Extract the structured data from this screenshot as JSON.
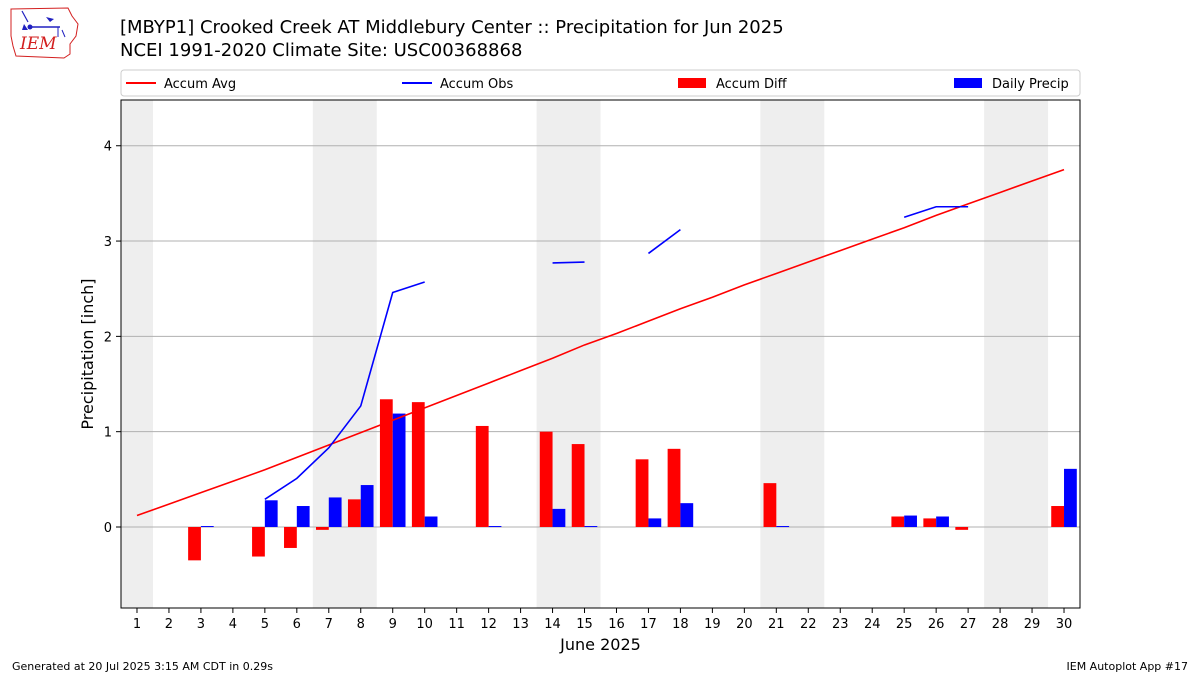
{
  "header": {
    "title_line1": "[MBYP1] Crooked Creek  AT Middlebury Center :: Precipitation for Jun 2025",
    "title_line2": "NCEI 1991-2020 Climate Site: USC00368868"
  },
  "logo": {
    "text": "IEM",
    "icon": "iowa-map-logo-icon"
  },
  "footer": {
    "left": "Generated at 20 Jul 2025 3:15 AM CDT in 0.29s",
    "right": "IEM Autoplot App #17"
  },
  "colors": {
    "accum_avg": "#ff0000",
    "accum_obs": "#0000ff",
    "accum_diff": "#ff0000",
    "daily_precip": "#0000ff",
    "weekend_shade": "#eeeeee",
    "grid": "#b0b0b0"
  },
  "chart_data": {
    "type": "bar",
    "xlabel": "June 2025",
    "ylabel": "Precipitation [inch]",
    "xlim": [
      0.5,
      30.5
    ],
    "ylim": [
      -0.85,
      4.48
    ],
    "yticks": [
      0,
      1,
      2,
      3,
      4
    ],
    "grid": "horizontal",
    "legend_position": "top",
    "legend": [
      {
        "label": "Accum Avg",
        "kind": "line",
        "color": "#ff0000"
      },
      {
        "label": "Accum Obs",
        "kind": "line",
        "color": "#0000ff"
      },
      {
        "label": "Accum Diff",
        "kind": "bar",
        "color": "#ff0000"
      },
      {
        "label": "Daily Precip",
        "kind": "bar",
        "color": "#0000ff"
      }
    ],
    "days": [
      1,
      2,
      3,
      4,
      5,
      6,
      7,
      8,
      9,
      10,
      11,
      12,
      13,
      14,
      15,
      16,
      17,
      18,
      19,
      20,
      21,
      22,
      23,
      24,
      25,
      26,
      27,
      28,
      29,
      30
    ],
    "weekend_shading": [
      [
        0.5,
        1.5
      ],
      [
        6.5,
        8.5
      ],
      [
        13.5,
        15.5
      ],
      [
        20.5,
        22.5
      ],
      [
        27.5,
        29.5
      ]
    ],
    "accum_avg": [
      0.12,
      0.24,
      0.36,
      0.48,
      0.6,
      0.73,
      0.86,
      0.99,
      1.12,
      1.25,
      1.38,
      1.51,
      1.64,
      1.77,
      1.91,
      2.03,
      2.16,
      2.29,
      2.41,
      2.54,
      2.66,
      2.78,
      2.9,
      3.02,
      3.14,
      3.27,
      3.39,
      3.51,
      3.63,
      3.75
    ],
    "accum_obs": [
      null,
      null,
      null,
      null,
      0.29,
      0.51,
      0.83,
      1.27,
      2.46,
      2.57,
      null,
      null,
      null,
      2.77,
      2.78,
      null,
      2.87,
      3.12,
      null,
      null,
      null,
      null,
      null,
      null,
      3.25,
      3.36,
      3.36,
      null,
      null,
      null
    ],
    "accum_diff": [
      null,
      null,
      -0.35,
      null,
      -0.31,
      -0.22,
      -0.03,
      0.29,
      1.34,
      1.31,
      null,
      1.06,
      null,
      1.0,
      0.87,
      null,
      0.71,
      0.82,
      null,
      null,
      0.46,
      null,
      null,
      null,
      0.11,
      0.09,
      -0.03,
      null,
      null,
      0.22
    ],
    "daily_precip": [
      null,
      null,
      0.01,
      null,
      0.28,
      0.22,
      0.31,
      0.44,
      1.19,
      0.11,
      null,
      0.01,
      null,
      0.19,
      0.01,
      null,
      0.09,
      0.25,
      null,
      null,
      0.01,
      null,
      null,
      null,
      0.12,
      0.11,
      null,
      null,
      null,
      0.61
    ]
  }
}
